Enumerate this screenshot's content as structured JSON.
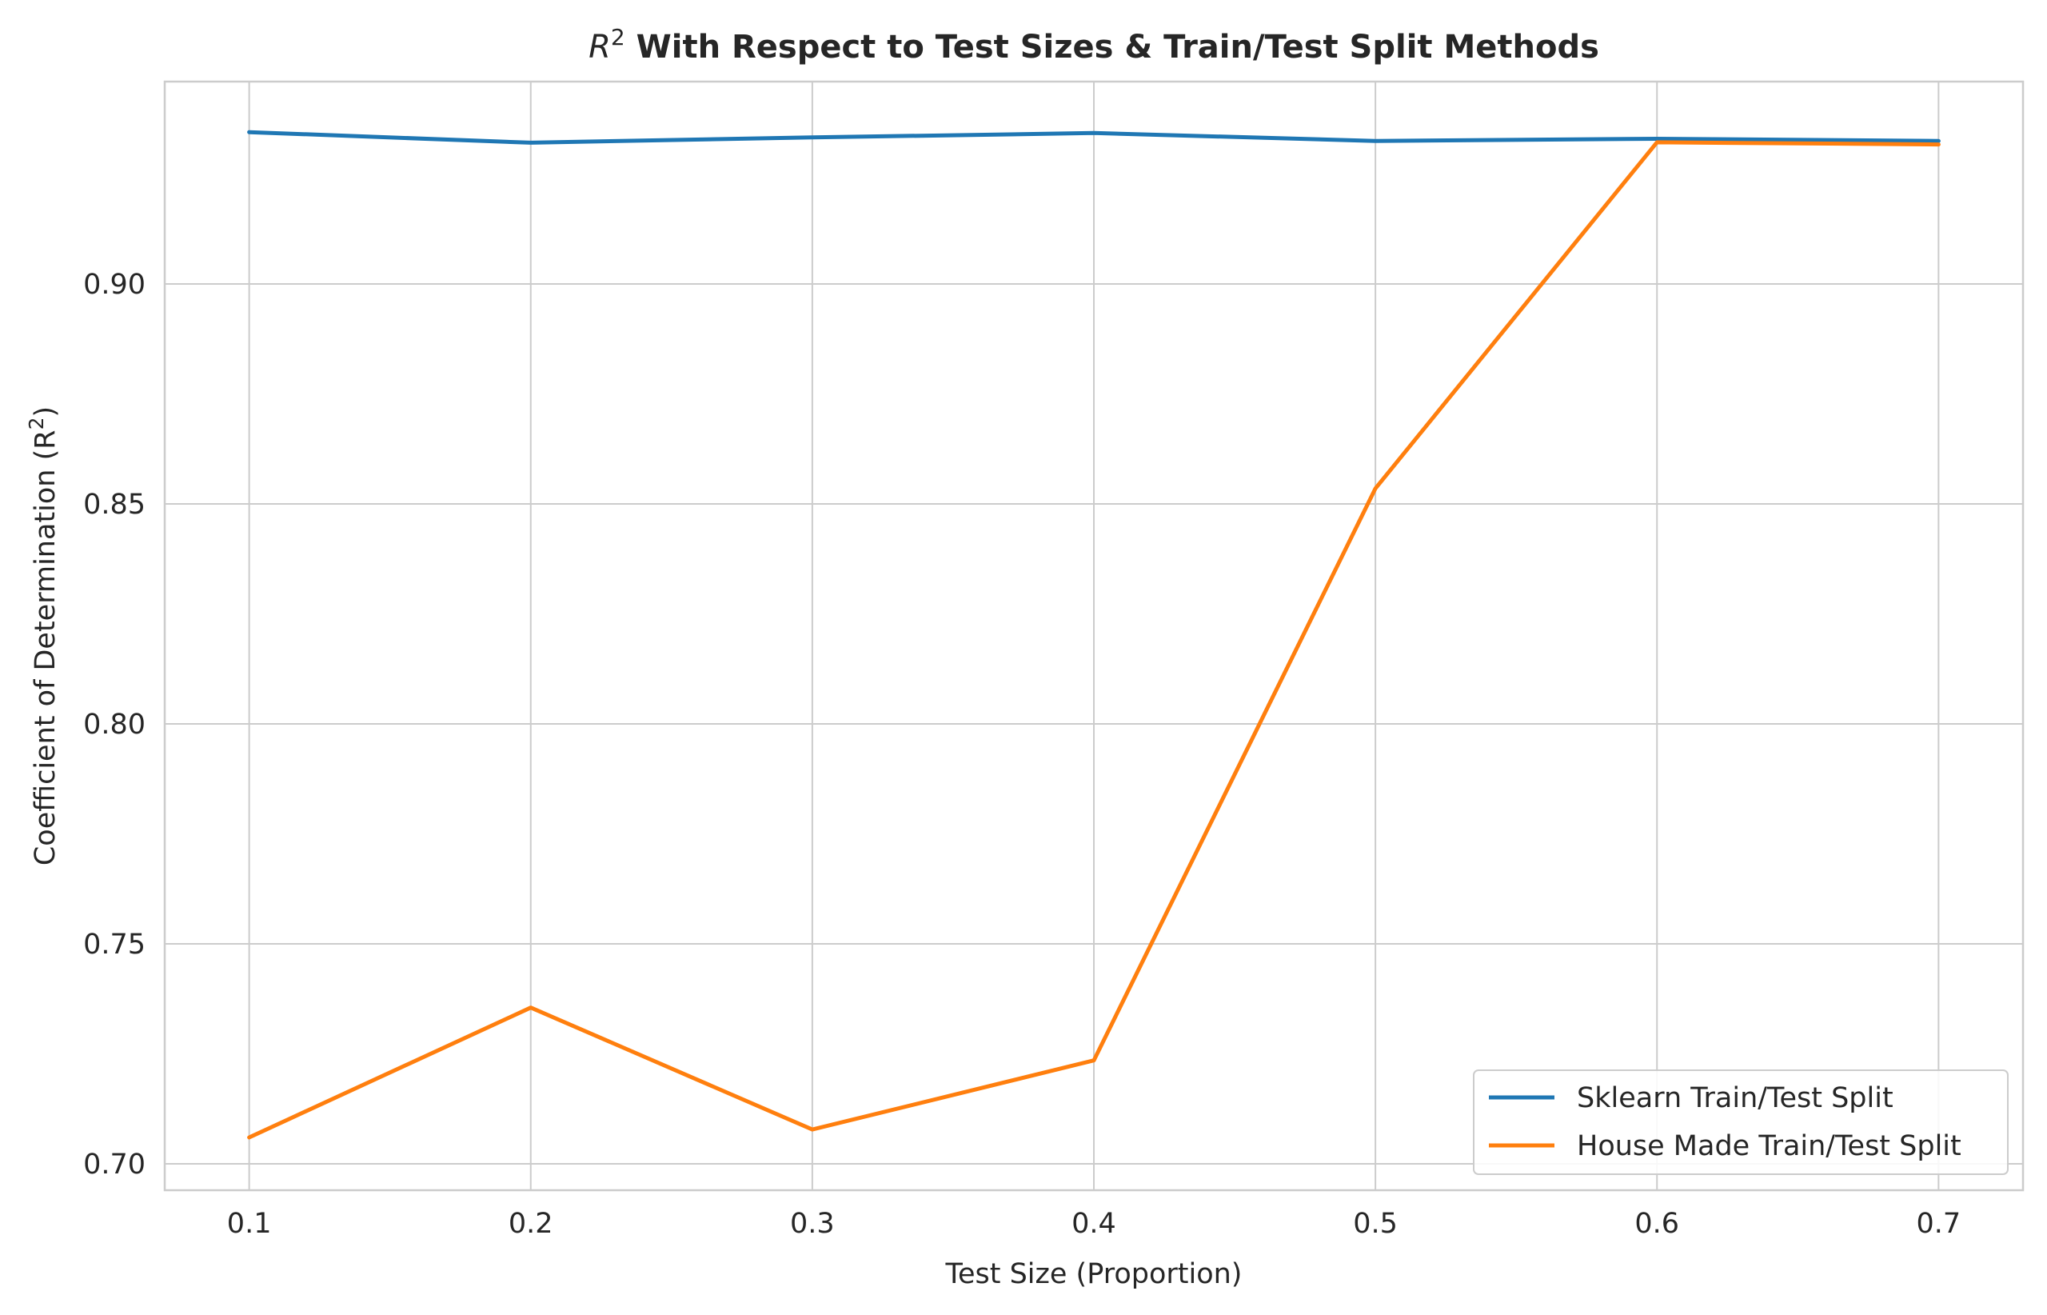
{
  "chart_data": {
    "type": "line",
    "title_math": "R",
    "title_sup": "2",
    "title": " With Respect to Test Sizes & Train/Test Split Methods",
    "xlabel": "Test Size (Proportion)",
    "ylabel": "Coefficient of Determination (R",
    "ylabel_sup": "2",
    "ylabel_close": ")",
    "x": [
      0.1,
      0.2,
      0.3,
      0.4,
      0.5,
      0.6,
      0.7
    ],
    "xlim": [
      0.07,
      0.73
    ],
    "ylim": [
      0.694,
      0.946
    ],
    "xticks": [
      0.1,
      0.2,
      0.3,
      0.4,
      0.5,
      0.6,
      0.7
    ],
    "xtick_labels": [
      "0.1",
      "0.2",
      "0.3",
      "0.4",
      "0.5",
      "0.6",
      "0.7"
    ],
    "yticks": [
      0.7,
      0.75,
      0.8,
      0.85,
      0.9
    ],
    "ytick_labels": [
      "0.70",
      "0.75",
      "0.80",
      "0.85",
      "0.90"
    ],
    "grid": true,
    "legend_position": "bottom-right",
    "series": [
      {
        "name": "Sklearn Train/Test Split",
        "color": "#1f77b4",
        "values": [
          0.9345,
          0.9321,
          0.9333,
          0.9343,
          0.9325,
          0.933,
          0.9325
        ]
      },
      {
        "name": "House Made Train/Test Split",
        "color": "#ff7f0e",
        "values": [
          0.706,
          0.7355,
          0.7078,
          0.7235,
          0.8535,
          0.9322,
          0.9317
        ]
      }
    ]
  }
}
